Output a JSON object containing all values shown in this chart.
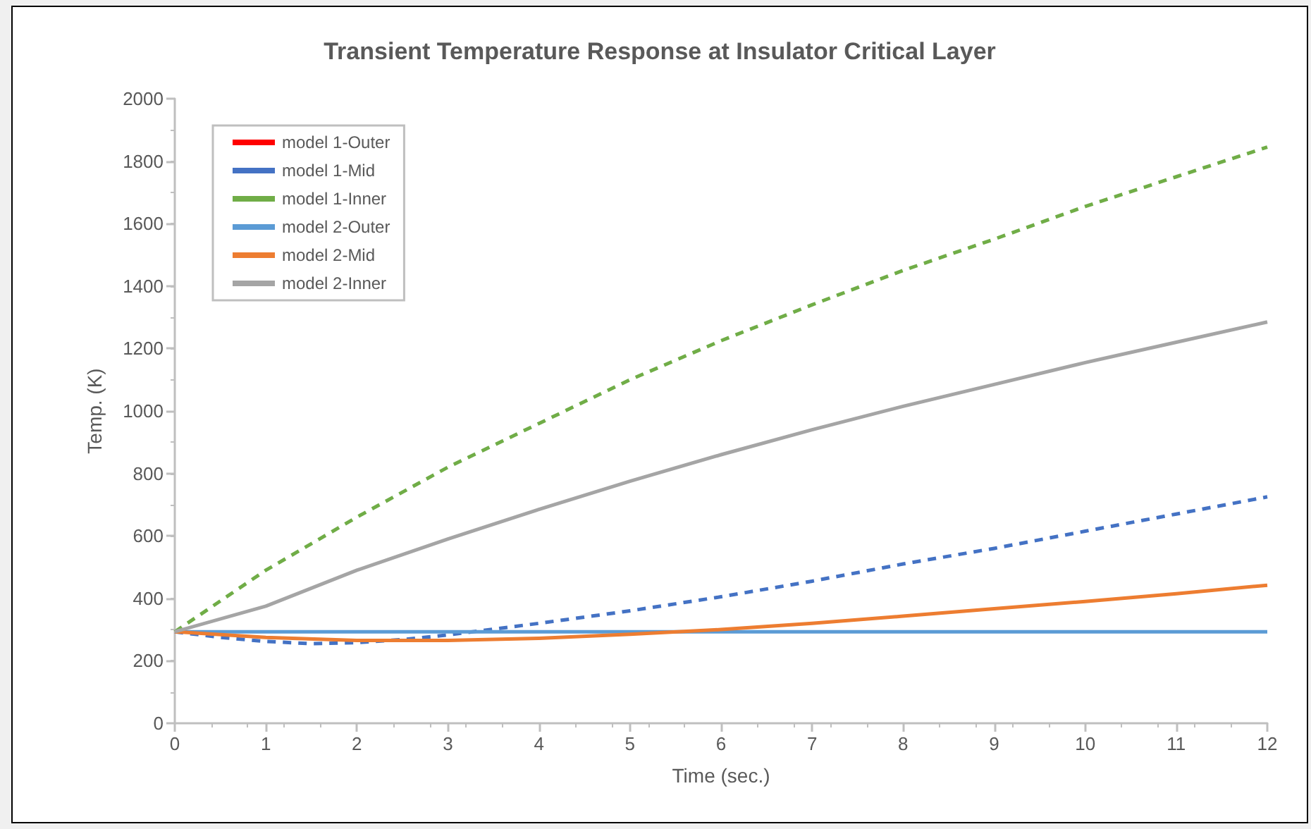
{
  "chart_data": {
    "type": "line",
    "title": "Transient Temperature Response at Insulator Critical Layer",
    "xlabel": "Time (sec.)",
    "ylabel": "Temp. (K)",
    "x": [
      0,
      1,
      2,
      3,
      4,
      5,
      6,
      7,
      8,
      9,
      10,
      11,
      12
    ],
    "xlim": [
      0,
      12
    ],
    "xticks": [
      0,
      1,
      2,
      3,
      4,
      5,
      6,
      7,
      8,
      9,
      10,
      11,
      12
    ],
    "ylim": [
      0,
      2000
    ],
    "yticks": [
      0,
      200,
      400,
      600,
      800,
      1000,
      1200,
      1400,
      1600,
      1800,
      2000
    ],
    "grid": false,
    "legend": "top left",
    "marker": "none",
    "series": [
      {
        "name": "model 1-Outer",
        "color": "#ff0000",
        "line_style": "dashed",
        "values": [
          null,
          null,
          null,
          null,
          null,
          null,
          null,
          null,
          null,
          null,
          null,
          null,
          null
        ]
      },
      {
        "name": "model 1-Mid",
        "color": "#4472c4",
        "line_style": "dashed",
        "x": [
          0,
          0.5,
          1,
          1.5,
          2,
          2.5,
          3,
          4,
          5,
          6,
          7,
          8,
          9,
          10,
          11,
          12
        ],
        "values": [
          293,
          275,
          262,
          255,
          258,
          268,
          283,
          320,
          360,
          405,
          455,
          510,
          560,
          615,
          670,
          725
        ]
      },
      {
        "name": "model 1-Inner",
        "color": "#70ad47",
        "line_style": "dashed",
        "values": [
          293,
          490,
          660,
          820,
          960,
          1100,
          1225,
          1340,
          1450,
          1550,
          1655,
          1750,
          1845
        ]
      },
      {
        "name": "model 2-Outer",
        "color": "#5b9bd5",
        "line_style": "solid",
        "values": [
          293,
          293,
          293,
          293,
          293,
          293,
          293,
          293,
          293,
          293,
          293,
          293,
          293
        ]
      },
      {
        "name": "model 2-Mid",
        "color": "#ed7d31",
        "line_style": "solid",
        "values": [
          293,
          275,
          265,
          265,
          272,
          285,
          300,
          320,
          343,
          367,
          390,
          415,
          442
        ]
      },
      {
        "name": "model 2-Inner",
        "color": "#a5a5a5",
        "line_style": "solid",
        "values": [
          293,
          375,
          490,
          590,
          685,
          775,
          860,
          940,
          1015,
          1085,
          1155,
          1220,
          1285
        ]
      }
    ]
  }
}
